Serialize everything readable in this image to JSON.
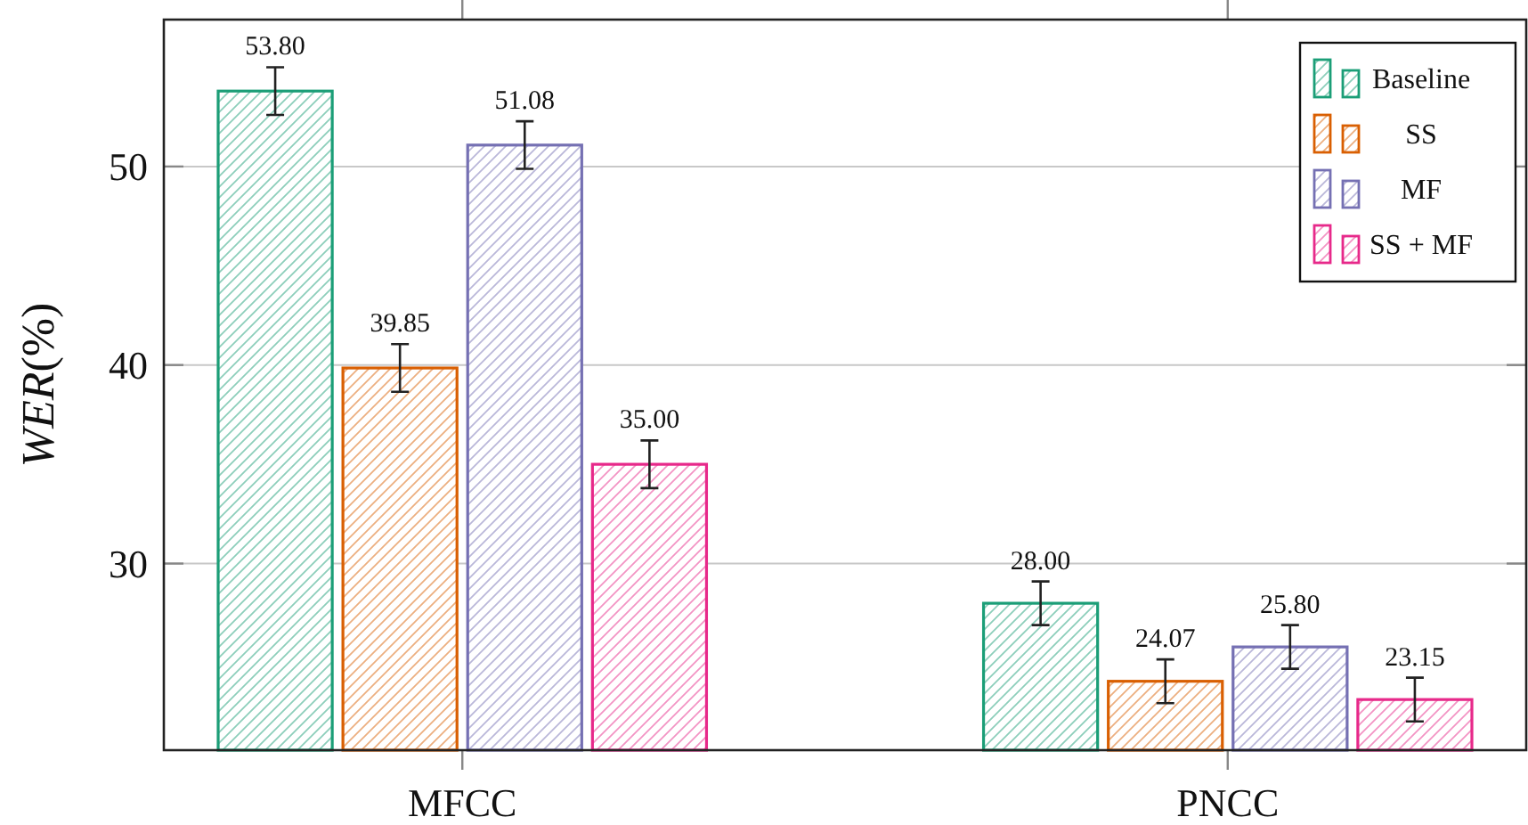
{
  "chart_data": {
    "type": "bar",
    "categories": [
      "MFCC",
      "PNCC"
    ],
    "ylabel": "WER(%)",
    "ylim": [
      20.6,
      57.4
    ],
    "yticks": [
      30,
      40,
      50
    ],
    "grid": "y",
    "legend": "top right",
    "series": [
      {
        "name": "Baseline",
        "color": "#1b9e77",
        "values": [
          53.8,
          28.0
        ],
        "errors": [
          1.2,
          1.1
        ],
        "value_labels": [
          "53.80",
          "28.00"
        ]
      },
      {
        "name": "SS",
        "color": "#d95f02",
        "values": [
          39.85,
          24.07
        ],
        "errors": [
          1.2,
          1.1
        ],
        "value_labels": [
          "39.85",
          "24.07"
        ]
      },
      {
        "name": "MF",
        "color": "#7570b3",
        "values": [
          51.08,
          25.8
        ],
        "errors": [
          1.2,
          1.1
        ],
        "value_labels": [
          "51.08",
          "25.80"
        ]
      },
      {
        "name": "SS + MF",
        "color": "#e7298a",
        "values": [
          35.0,
          23.15
        ],
        "errors": [
          1.2,
          1.1
        ],
        "value_labels": [
          "35.00",
          "23.15"
        ]
      }
    ]
  }
}
